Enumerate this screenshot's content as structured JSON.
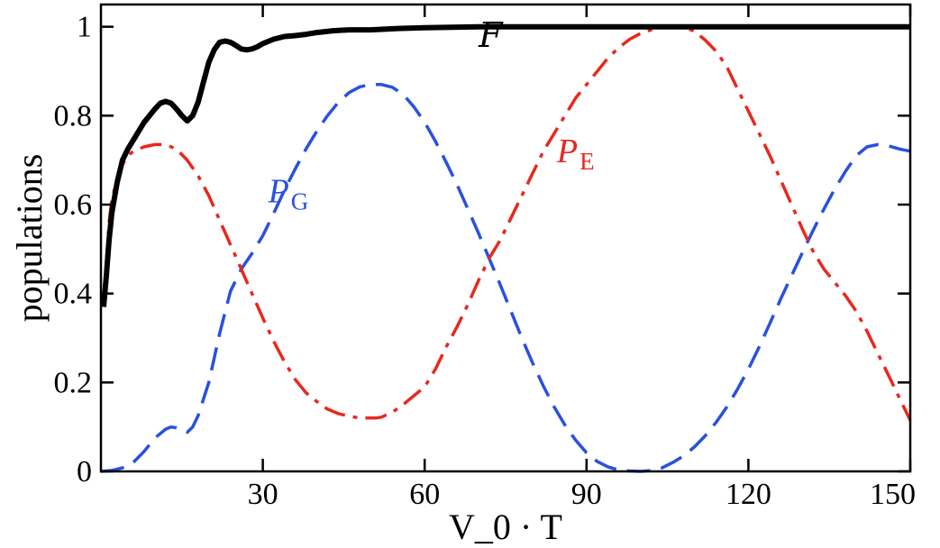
{
  "chart_data": {
    "type": "line",
    "title": "",
    "xlabel": "V_0 · T",
    "ylabel": "populations",
    "xlim": [
      0,
      150
    ],
    "ylim": [
      0,
      1.05
    ],
    "xticks": [
      {
        "value": 30,
        "label": "30"
      },
      {
        "value": 60,
        "label": "60"
      },
      {
        "value": 90,
        "label": "90"
      },
      {
        "value": 120,
        "label": "120"
      },
      {
        "value": 150,
        "label": "150"
      }
    ],
    "yticks": [
      {
        "value": 0,
        "label": "0"
      },
      {
        "value": 0.2,
        "label": "0.2"
      },
      {
        "value": 0.4,
        "label": "0.4"
      },
      {
        "value": 0.6,
        "label": "0.6"
      },
      {
        "value": 0.8,
        "label": "0.8"
      },
      {
        "value": 1,
        "label": "1"
      }
    ],
    "grid": false,
    "legend": "none",
    "series": [
      {
        "name": "F",
        "label_main": "F",
        "label_sub": "",
        "label_at": [
          70,
          0.955
        ],
        "color": "#000000",
        "dash": "solid",
        "x": [
          0.5,
          1,
          1.5,
          2,
          3,
          4,
          5,
          6,
          7,
          8,
          9,
          10,
          11,
          12,
          13,
          14,
          15,
          16,
          17,
          18,
          19,
          20,
          21,
          22,
          23,
          24,
          25,
          26,
          27,
          28,
          29,
          30,
          32,
          34,
          36,
          38,
          40,
          43,
          46,
          50,
          55,
          60,
          65,
          70,
          80,
          90,
          100,
          110,
          120,
          130,
          140,
          150
        ],
        "y": [
          0.37,
          0.44,
          0.52,
          0.58,
          0.65,
          0.7,
          0.725,
          0.745,
          0.765,
          0.785,
          0.8,
          0.815,
          0.828,
          0.832,
          0.828,
          0.815,
          0.8,
          0.788,
          0.8,
          0.83,
          0.875,
          0.92,
          0.948,
          0.965,
          0.968,
          0.965,
          0.958,
          0.95,
          0.948,
          0.95,
          0.955,
          0.962,
          0.972,
          0.978,
          0.98,
          0.983,
          0.987,
          0.991,
          0.993,
          0.993,
          0.996,
          0.998,
          0.999,
          1.0,
          1.0,
          1.0,
          1.0,
          1.0,
          1.0,
          1.0,
          1.0,
          1.0
        ]
      },
      {
        "name": "P_E",
        "label_main": "P",
        "label_sub": "E",
        "label_at": [
          84.5,
          0.695
        ],
        "color": "#e8281e",
        "dash": "dashdot",
        "x": [
          0.5,
          1,
          1.5,
          2,
          3,
          4,
          5,
          6,
          8,
          10,
          12,
          14,
          16,
          18,
          20,
          22,
          24,
          26,
          28,
          30,
          32,
          34,
          36,
          38,
          40,
          42,
          44,
          46,
          48,
          50,
          51,
          52,
          54,
          56,
          58,
          60,
          62,
          64,
          66,
          68,
          70,
          72,
          74,
          76,
          78,
          80,
          82,
          84,
          86,
          88,
          90,
          92,
          94,
          96,
          98,
          100,
          102,
          104,
          106,
          107,
          108,
          110,
          112,
          114,
          116,
          118,
          120,
          122,
          124,
          126,
          128,
          130,
          132,
          134,
          136,
          138,
          140,
          142,
          144,
          146,
          148,
          150
        ],
        "y": [
          0.37,
          0.47,
          0.56,
          0.61,
          0.66,
          0.69,
          0.71,
          0.72,
          0.73,
          0.735,
          0.735,
          0.725,
          0.7,
          0.665,
          0.62,
          0.565,
          0.51,
          0.455,
          0.4,
          0.345,
          0.293,
          0.247,
          0.207,
          0.177,
          0.157,
          0.14,
          0.13,
          0.124,
          0.12,
          0.12,
          0.12,
          0.122,
          0.133,
          0.15,
          0.17,
          0.19,
          0.23,
          0.28,
          0.325,
          0.375,
          0.43,
          0.48,
          0.52,
          0.57,
          0.62,
          0.67,
          0.72,
          0.76,
          0.8,
          0.84,
          0.87,
          0.9,
          0.93,
          0.953,
          0.972,
          0.985,
          0.993,
          0.998,
          1.0,
          1.0,
          0.999,
          0.99,
          0.97,
          0.945,
          0.91,
          0.86,
          0.81,
          0.76,
          0.71,
          0.655,
          0.6,
          0.545,
          0.495,
          0.455,
          0.425,
          0.395,
          0.36,
          0.315,
          0.265,
          0.215,
          0.165,
          0.115
        ]
      },
      {
        "name": "P_G",
        "label_main": "P",
        "label_sub": "G",
        "label_at": [
          31,
          0.605
        ],
        "color": "#2950e0",
        "dash": "dashed",
        "x": [
          0,
          2,
          4,
          6,
          8,
          10,
          12,
          13,
          14,
          15,
          16,
          17,
          18,
          20,
          22,
          24,
          26,
          28,
          30,
          32,
          34,
          36,
          38,
          40,
          42,
          44,
          46,
          48,
          50,
          51,
          52,
          54,
          56,
          58,
          60,
          62,
          64,
          66,
          68,
          70,
          72,
          74,
          76,
          78,
          80,
          82,
          84,
          86,
          88,
          90,
          92,
          94,
          96,
          98,
          100,
          102,
          104,
          106,
          108,
          110,
          112,
          114,
          116,
          118,
          120,
          122,
          124,
          126,
          128,
          130,
          132,
          134,
          136,
          138,
          140,
          142,
          144,
          146,
          148,
          150
        ],
        "y": [
          0,
          0.002,
          0.008,
          0.02,
          0.045,
          0.075,
          0.095,
          0.1,
          0.098,
          0.09,
          0.088,
          0.1,
          0.125,
          0.2,
          0.31,
          0.405,
          0.455,
          0.49,
          0.53,
          0.58,
          0.632,
          0.68,
          0.725,
          0.765,
          0.8,
          0.83,
          0.852,
          0.865,
          0.87,
          0.87,
          0.87,
          0.864,
          0.848,
          0.82,
          0.785,
          0.742,
          0.695,
          0.645,
          0.59,
          0.535,
          0.478,
          0.42,
          0.36,
          0.3,
          0.244,
          0.192,
          0.145,
          0.104,
          0.07,
          0.042,
          0.022,
          0.01,
          0.003,
          0.001,
          0.0,
          0.002,
          0.008,
          0.02,
          0.035,
          0.055,
          0.08,
          0.11,
          0.145,
          0.185,
          0.23,
          0.28,
          0.333,
          0.388,
          0.44,
          0.492,
          0.542,
          0.59,
          0.635,
          0.675,
          0.71,
          0.73,
          0.735,
          0.732,
          0.725,
          0.72
        ]
      }
    ]
  }
}
